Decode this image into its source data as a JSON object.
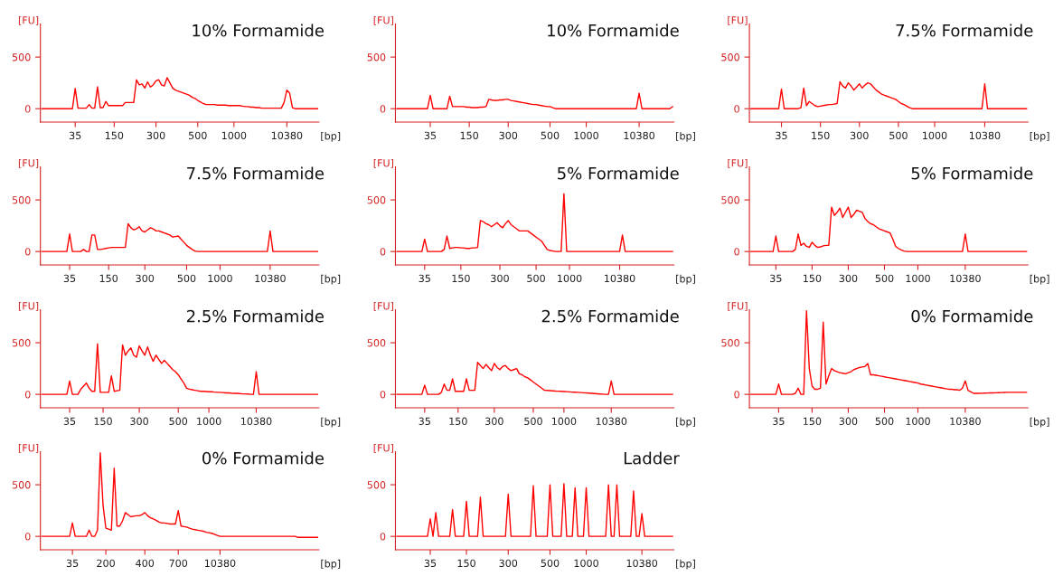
{
  "chart_data": [
    {
      "type": "line",
      "title": "10% Formamide",
      "xlabel": "[bp]",
      "ylabel": "[FU]",
      "ylim": [
        -130,
        820
      ],
      "yticks": [
        0,
        500
      ],
      "categories": [
        null,
        null,
        null,
        null,
        null,
        null,
        null,
        null,
        null,
        null,
        null,
        null,
        "35",
        null,
        null,
        null,
        null,
        null,
        null,
        null,
        null,
        null,
        null,
        null,
        null,
        null,
        "150",
        null,
        null,
        null,
        null,
        null,
        null,
        null,
        null,
        null,
        null,
        null,
        null,
        null,
        null,
        "300",
        null,
        null,
        null,
        null,
        null,
        null,
        null,
        null,
        null,
        null,
        null,
        null,
        null,
        null,
        "500",
        null,
        null,
        null,
        null,
        null,
        null,
        null,
        null,
        null,
        null,
        null,
        null,
        "1000",
        null,
        null,
        null,
        null,
        null,
        null,
        null,
        null,
        null,
        null,
        null,
        null,
        null,
        null,
        null,
        null,
        null,
        null,
        "10380",
        null,
        null,
        null,
        null,
        null,
        null,
        null,
        null,
        null,
        null,
        null
      ],
      "series": [
        {
          "color": "#ff0000",
          "values": [
            0,
            0,
            0,
            0,
            0,
            0,
            0,
            0,
            0,
            0,
            0,
            0,
            196,
            5,
            5,
            5,
            5,
            40,
            5,
            5,
            212,
            10,
            10,
            70,
            30,
            30,
            30,
            30,
            30,
            30,
            60,
            60,
            60,
            60,
            280,
            230,
            240,
            200,
            260,
            210,
            230,
            270,
            280,
            230,
            220,
            300,
            250,
            200,
            180,
            170,
            160,
            150,
            140,
            130,
            110,
            100,
            80,
            65,
            50,
            40,
            40,
            40,
            40,
            35,
            35,
            35,
            35,
            30,
            30,
            30,
            30,
            30,
            25,
            20,
            20,
            15,
            15,
            10,
            10,
            5,
            5,
            5,
            5,
            5,
            5,
            5,
            5,
            60,
            180,
            150,
            10,
            0,
            0,
            0,
            0,
            0,
            0,
            0,
            0,
            0
          ]
        }
      ]
    },
    {
      "type": "line",
      "title": "10% Formamide",
      "xlabel": "[bp]",
      "ylabel": "[FU]",
      "ylim": [
        -130,
        820
      ],
      "yticks": [
        0,
        500
      ],
      "categories": [
        null,
        null,
        null,
        null,
        null,
        null,
        null,
        null,
        null,
        null,
        null,
        null,
        "35",
        null,
        null,
        null,
        null,
        null,
        null,
        null,
        null,
        null,
        null,
        null,
        null,
        null,
        "150",
        null,
        null,
        null,
        null,
        null,
        null,
        null,
        null,
        null,
        null,
        null,
        null,
        null,
        "300",
        null,
        null,
        null,
        null,
        null,
        null,
        null,
        null,
        null,
        null,
        null,
        null,
        null,
        null,
        "500",
        null,
        null,
        null,
        null,
        null,
        null,
        null,
        null,
        null,
        null,
        null,
        null,
        "1000",
        null,
        null,
        null,
        null,
        null,
        null,
        null,
        null,
        null,
        null,
        null,
        null,
        null,
        null,
        null,
        null,
        null,
        null,
        "10380",
        null,
        null,
        null,
        null,
        null,
        null,
        null,
        null,
        null,
        null,
        null,
        null
      ],
      "series": [
        {
          "color": "#ff0000",
          "values": [
            0,
            0,
            0,
            0,
            0,
            0,
            0,
            0,
            0,
            0,
            0,
            0,
            130,
            0,
            0,
            0,
            0,
            0,
            0,
            120,
            20,
            20,
            20,
            20,
            20,
            15,
            15,
            10,
            10,
            10,
            15,
            15,
            20,
            90,
            85,
            80,
            80,
            85,
            85,
            90,
            90,
            80,
            75,
            70,
            65,
            60,
            55,
            50,
            45,
            40,
            40,
            35,
            30,
            25,
            20,
            20,
            10,
            0,
            0,
            0,
            0,
            0,
            0,
            0,
            0,
            0,
            0,
            0,
            0,
            0,
            0,
            0,
            0,
            0,
            0,
            0,
            0,
            0,
            0,
            0,
            0,
            0,
            0,
            0,
            0,
            0,
            0,
            150,
            0,
            0,
            0,
            0,
            0,
            0,
            0,
            0,
            0,
            0,
            0,
            20
          ]
        }
      ]
    },
    {
      "type": "line",
      "title": "7.5% Formamide",
      "xlabel": "[bp]",
      "ylabel": "[FU]",
      "ylim": [
        -130,
        820
      ],
      "yticks": [
        0,
        500
      ],
      "categories": [
        null,
        null,
        null,
        null,
        null,
        null,
        null,
        null,
        null,
        null,
        null,
        "35",
        null,
        null,
        null,
        null,
        null,
        null,
        null,
        null,
        null,
        null,
        null,
        null,
        null,
        "150",
        null,
        null,
        null,
        null,
        null,
        null,
        null,
        null,
        null,
        null,
        null,
        null,
        null,
        "300",
        null,
        null,
        null,
        null,
        null,
        null,
        null,
        null,
        null,
        null,
        null,
        null,
        null,
        "500",
        null,
        null,
        null,
        null,
        null,
        null,
        null,
        null,
        null,
        null,
        null,
        null,
        "1000",
        null,
        null,
        null,
        null,
        null,
        null,
        null,
        null,
        null,
        null,
        null,
        null,
        null,
        null,
        null,
        null,
        null,
        "10380",
        null,
        null,
        null,
        null,
        null,
        null,
        null,
        null,
        null,
        null,
        null,
        null,
        null,
        null,
        null
      ],
      "series": [
        {
          "color": "#ff0000",
          "values": [
            0,
            0,
            0,
            0,
            0,
            0,
            0,
            0,
            0,
            0,
            0,
            190,
            0,
            0,
            0,
            0,
            0,
            0,
            10,
            200,
            30,
            70,
            50,
            30,
            20,
            25,
            30,
            35,
            40,
            40,
            45,
            50,
            260,
            220,
            200,
            250,
            220,
            180,
            210,
            240,
            200,
            230,
            250,
            240,
            210,
            180,
            160,
            140,
            130,
            120,
            110,
            100,
            90,
            70,
            50,
            40,
            25,
            10,
            0,
            0,
            0,
            0,
            0,
            0,
            0,
            0,
            0,
            0,
            0,
            0,
            0,
            0,
            0,
            0,
            0,
            0,
            0,
            0,
            0,
            0,
            0,
            0,
            0,
            0,
            240,
            0,
            0,
            0,
            0,
            0,
            0,
            0,
            0,
            0,
            0,
            0,
            0,
            0,
            0,
            0
          ]
        }
      ]
    },
    {
      "type": "line",
      "title": "7.5% Formamide",
      "xlabel": "[bp]",
      "ylabel": "[FU]",
      "ylim": [
        -130,
        820
      ],
      "yticks": [
        0,
        500
      ],
      "categories": [
        null,
        null,
        null,
        null,
        null,
        null,
        null,
        null,
        null,
        null,
        "35",
        null,
        null,
        null,
        null,
        null,
        null,
        null,
        null,
        null,
        null,
        null,
        null,
        null,
        "150",
        null,
        null,
        null,
        null,
        null,
        null,
        null,
        null,
        null,
        null,
        null,
        null,
        "300",
        null,
        null,
        null,
        null,
        null,
        null,
        null,
        null,
        null,
        null,
        null,
        null,
        null,
        null,
        "500",
        null,
        null,
        null,
        null,
        null,
        null,
        null,
        null,
        null,
        null,
        null,
        "1000",
        null,
        null,
        null,
        null,
        null,
        null,
        null,
        null,
        null,
        null,
        null,
        null,
        null,
        null,
        null,
        null,
        null,
        "10380",
        null,
        null,
        null,
        null,
        null,
        null,
        null,
        null,
        null,
        null,
        null,
        null,
        null,
        null,
        null,
        null,
        null
      ],
      "series": [
        {
          "color": "#ff0000",
          "values": [
            0,
            0,
            0,
            0,
            0,
            0,
            0,
            0,
            0,
            0,
            170,
            0,
            0,
            0,
            0,
            20,
            0,
            0,
            160,
            160,
            20,
            20,
            25,
            30,
            35,
            40,
            40,
            40,
            40,
            40,
            40,
            270,
            230,
            210,
            220,
            240,
            200,
            190,
            210,
            230,
            220,
            200,
            200,
            190,
            180,
            170,
            160,
            140,
            145,
            150,
            120,
            90,
            60,
            40,
            20,
            5,
            0,
            0,
            0,
            0,
            0,
            0,
            0,
            0,
            0,
            0,
            0,
            0,
            0,
            0,
            0,
            0,
            0,
            0,
            0,
            0,
            0,
            0,
            0,
            0,
            0,
            0,
            200,
            0,
            0,
            0,
            0,
            0,
            0,
            0,
            0,
            0,
            0,
            0,
            0,
            0,
            0,
            0,
            0,
            0
          ]
        }
      ]
    },
    {
      "type": "line",
      "title": "5% Formamide",
      "xlabel": "[bp]",
      "ylabel": "[FU]",
      "ylim": [
        -130,
        820
      ],
      "yticks": [
        0,
        500
      ],
      "categories": [
        null,
        null,
        null,
        null,
        null,
        null,
        null,
        null,
        null,
        null,
        "35",
        null,
        null,
        null,
        null,
        null,
        null,
        null,
        null,
        null,
        null,
        null,
        null,
        "150",
        null,
        null,
        null,
        null,
        null,
        null,
        null,
        null,
        null,
        null,
        null,
        null,
        null,
        "300",
        null,
        null,
        null,
        null,
        null,
        null,
        null,
        null,
        null,
        null,
        null,
        null,
        "500",
        null,
        null,
        null,
        null,
        null,
        null,
        null,
        null,
        null,
        null,
        null,
        "1000",
        null,
        null,
        null,
        null,
        null,
        null,
        null,
        null,
        null,
        null,
        null,
        null,
        null,
        null,
        null,
        null,
        null,
        "10380",
        null,
        null,
        null,
        null,
        null,
        null,
        null,
        null,
        null,
        null,
        null,
        null,
        null,
        null,
        null,
        null,
        null,
        null,
        null
      ],
      "series": [
        {
          "color": "#ff0000",
          "values": [
            0,
            0,
            0,
            0,
            0,
            0,
            0,
            0,
            0,
            0,
            120,
            0,
            0,
            0,
            0,
            0,
            0,
            20,
            150,
            30,
            35,
            40,
            40,
            35,
            35,
            30,
            30,
            35,
            35,
            40,
            300,
            290,
            270,
            260,
            240,
            260,
            280,
            250,
            230,
            270,
            300,
            260,
            240,
            220,
            200,
            200,
            200,
            200,
            180,
            160,
            140,
            120,
            100,
            60,
            20,
            10,
            5,
            0,
            0,
            0,
            560,
            0,
            0,
            0,
            0,
            0,
            0,
            0,
            0,
            0,
            0,
            0,
            0,
            0,
            0,
            0,
            0,
            0,
            0,
            0,
            0,
            160,
            0,
            0,
            0,
            0,
            0,
            0,
            0,
            0,
            0,
            0,
            0,
            0,
            0,
            0,
            0,
            0,
            0,
            0
          ]
        }
      ]
    },
    {
      "type": "line",
      "title": "5% Formamide",
      "xlabel": "[bp]",
      "ylabel": "[FU]",
      "ylim": [
        -130,
        820
      ],
      "yticks": [
        0,
        500
      ],
      "categories": [
        null,
        null,
        null,
        null,
        null,
        null,
        null,
        null,
        null,
        "35",
        null,
        null,
        null,
        null,
        null,
        null,
        null,
        null,
        null,
        null,
        null,
        null,
        "150",
        null,
        null,
        null,
        null,
        null,
        null,
        null,
        null,
        null,
        null,
        null,
        null,
        "300",
        null,
        null,
        null,
        null,
        null,
        null,
        null,
        null,
        null,
        null,
        null,
        null,
        "500",
        null,
        null,
        null,
        null,
        null,
        null,
        null,
        null,
        null,
        null,
        null,
        "1000",
        null,
        null,
        null,
        null,
        null,
        null,
        null,
        null,
        null,
        null,
        null,
        null,
        null,
        null,
        null,
        null,
        "10380",
        null,
        null,
        null,
        null,
        null,
        null,
        null,
        null,
        null,
        null,
        null,
        null,
        null,
        null,
        null,
        null,
        null,
        null,
        null,
        null,
        null,
        null
      ],
      "series": [
        {
          "color": "#ff0000",
          "values": [
            0,
            0,
            0,
            0,
            0,
            0,
            0,
            0,
            0,
            150,
            0,
            0,
            0,
            0,
            0,
            0,
            20,
            170,
            60,
            80,
            50,
            40,
            90,
            60,
            40,
            45,
            55,
            60,
            60,
            430,
            350,
            380,
            420,
            330,
            380,
            430,
            330,
            360,
            400,
            390,
            380,
            320,
            290,
            270,
            260,
            240,
            220,
            210,
            200,
            190,
            180,
            120,
            50,
            30,
            15,
            5,
            0,
            0,
            0,
            0,
            0,
            0,
            0,
            0,
            0,
            0,
            0,
            0,
            0,
            0,
            0,
            0,
            0,
            0,
            0,
            0,
            0,
            170,
            0,
            0,
            0,
            0,
            0,
            0,
            0,
            0,
            0,
            0,
            0,
            0,
            0,
            0,
            0,
            0,
            0,
            0,
            0,
            0,
            0,
            0
          ]
        }
      ]
    },
    {
      "type": "line",
      "title": "2.5% Formamide",
      "xlabel": "[bp]",
      "ylabel": "[FU]",
      "ylim": [
        -130,
        820
      ],
      "yticks": [
        0,
        500
      ],
      "categories": [
        null,
        null,
        null,
        null,
        null,
        null,
        null,
        null,
        null,
        null,
        "35",
        null,
        null,
        null,
        null,
        null,
        null,
        null,
        null,
        null,
        null,
        null,
        "150",
        null,
        null,
        null,
        null,
        null,
        null,
        null,
        null,
        null,
        null,
        null,
        null,
        "300",
        null,
        null,
        null,
        null,
        null,
        null,
        null,
        null,
        null,
        null,
        null,
        null,
        null,
        "500",
        null,
        null,
        null,
        null,
        null,
        null,
        null,
        null,
        null,
        null,
        "1000",
        null,
        null,
        null,
        null,
        null,
        null,
        null,
        null,
        null,
        null,
        null,
        null,
        null,
        null,
        null,
        null,
        "10380",
        null,
        null,
        null,
        null,
        null,
        null,
        null,
        null,
        null,
        null,
        null,
        null,
        null,
        null,
        null,
        null,
        null,
        null,
        null,
        null,
        null,
        null
      ],
      "series": [
        {
          "color": "#ff0000",
          "values": [
            0,
            0,
            0,
            0,
            0,
            0,
            0,
            0,
            0,
            0,
            130,
            0,
            0,
            0,
            50,
            80,
            110,
            60,
            30,
            30,
            490,
            20,
            20,
            20,
            20,
            180,
            30,
            35,
            40,
            480,
            380,
            420,
            450,
            380,
            360,
            470,
            420,
            380,
            460,
            380,
            320,
            380,
            340,
            300,
            330,
            300,
            270,
            240,
            220,
            190,
            150,
            110,
            60,
            50,
            45,
            40,
            35,
            30,
            30,
            28,
            25,
            25,
            22,
            20,
            20,
            18,
            15,
            15,
            12,
            10,
            10,
            8,
            5,
            5,
            3,
            0,
            0,
            220,
            0,
            0,
            0,
            0,
            0,
            0,
            0,
            0,
            0,
            0,
            0,
            0,
            0,
            0,
            0,
            0,
            0,
            0,
            0,
            0,
            0,
            0
          ]
        }
      ]
    },
    {
      "type": "line",
      "title": "2.5% Formamide",
      "xlabel": "[bp]",
      "ylabel": "[FU]",
      "ylim": [
        -130,
        820
      ],
      "yticks": [
        0,
        500
      ],
      "categories": [
        null,
        null,
        null,
        null,
        null,
        null,
        null,
        null,
        null,
        null,
        "35",
        null,
        null,
        null,
        null,
        null,
        null,
        null,
        null,
        null,
        null,
        null,
        "150",
        null,
        null,
        null,
        null,
        null,
        null,
        null,
        null,
        null,
        null,
        null,
        null,
        "300",
        null,
        null,
        null,
        null,
        null,
        null,
        null,
        null,
        null,
        null,
        null,
        null,
        null,
        "500",
        null,
        null,
        null,
        null,
        null,
        null,
        null,
        null,
        null,
        null,
        "1000",
        null,
        null,
        null,
        null,
        null,
        null,
        null,
        null,
        null,
        null,
        null,
        null,
        null,
        null,
        null,
        null,
        "10380",
        null,
        null,
        null,
        null,
        null,
        null,
        null,
        null,
        null,
        null,
        null,
        null,
        null,
        null,
        null,
        null,
        null,
        null,
        null,
        null,
        null,
        null
      ],
      "series": [
        {
          "color": "#ff0000",
          "values": [
            0,
            0,
            0,
            0,
            0,
            0,
            0,
            0,
            0,
            0,
            90,
            0,
            0,
            0,
            0,
            0,
            20,
            100,
            40,
            40,
            150,
            30,
            30,
            30,
            30,
            150,
            40,
            40,
            40,
            310,
            280,
            250,
            290,
            260,
            230,
            300,
            260,
            240,
            270,
            280,
            250,
            230,
            240,
            250,
            200,
            190,
            170,
            160,
            140,
            120,
            100,
            80,
            60,
            40,
            38,
            36,
            34,
            32,
            31,
            30,
            28,
            26,
            24,
            22,
            21,
            20,
            18,
            16,
            14,
            12,
            10,
            8,
            6,
            4,
            2,
            0,
            0,
            130,
            0,
            0,
            0,
            0,
            0,
            0,
            0,
            0,
            0,
            0,
            0,
            0,
            0,
            0,
            0,
            0,
            0,
            0,
            0,
            0,
            0,
            0
          ]
        }
      ]
    },
    {
      "type": "line",
      "title": "0% Formamide",
      "xlabel": "[bp]",
      "ylabel": "[FU]",
      "ylim": [
        -130,
        820
      ],
      "yticks": [
        0,
        500
      ],
      "categories": [
        null,
        null,
        null,
        null,
        null,
        null,
        null,
        null,
        null,
        null,
        "35",
        null,
        null,
        null,
        null,
        null,
        null,
        null,
        null,
        null,
        null,
        null,
        "150",
        null,
        null,
        null,
        null,
        null,
        null,
        null,
        null,
        null,
        null,
        null,
        null,
        "300",
        null,
        null,
        null,
        null,
        null,
        null,
        null,
        null,
        null,
        null,
        null,
        null,
        "500",
        null,
        null,
        null,
        null,
        null,
        null,
        null,
        null,
        null,
        null,
        null,
        "1000",
        null,
        null,
        null,
        null,
        null,
        null,
        null,
        null,
        null,
        null,
        null,
        null,
        null,
        null,
        null,
        null,
        "10380",
        null,
        null,
        null,
        null,
        null,
        null,
        null,
        null,
        null,
        null,
        null,
        null,
        null,
        null,
        null,
        null,
        null,
        null,
        null,
        null,
        null,
        null
      ],
      "series": [
        {
          "color": "#ff0000",
          "values": [
            0,
            0,
            0,
            0,
            0,
            0,
            0,
            0,
            0,
            0,
            100,
            0,
            0,
            0,
            0,
            0,
            10,
            60,
            0,
            0,
            810,
            250,
            80,
            50,
            50,
            60,
            700,
            100,
            180,
            250,
            230,
            220,
            210,
            205,
            200,
            210,
            220,
            240,
            250,
            260,
            265,
            270,
            300,
            190,
            190,
            185,
            180,
            175,
            170,
            165,
            160,
            155,
            150,
            145,
            140,
            135,
            130,
            125,
            120,
            115,
            110,
            100,
            95,
            90,
            85,
            80,
            75,
            70,
            65,
            60,
            55,
            50,
            50,
            45,
            45,
            40,
            60,
            130,
            40,
            25,
            10,
            10,
            10,
            11,
            12,
            13,
            14,
            15,
            16,
            17,
            18,
            19,
            20,
            20,
            20,
            20,
            20,
            20,
            20,
            20
          ]
        }
      ]
    },
    {
      "type": "line",
      "title": "0% Formamide",
      "xlabel": "[bp]",
      "ylabel": "[FU]",
      "ylim": [
        -130,
        820
      ],
      "yticks": [
        0,
        500
      ],
      "categories": [
        null,
        null,
        null,
        null,
        null,
        null,
        null,
        null,
        null,
        null,
        null,
        "35",
        null,
        null,
        null,
        null,
        null,
        null,
        null,
        null,
        null,
        null,
        null,
        "200",
        null,
        null,
        null,
        null,
        null,
        null,
        null,
        null,
        null,
        null,
        null,
        null,
        null,
        "400",
        null,
        null,
        null,
        null,
        null,
        null,
        null,
        null,
        null,
        null,
        null,
        "700",
        null,
        null,
        null,
        null,
        null,
        null,
        null,
        null,
        null,
        null,
        null,
        null,
        null,
        null,
        "10380",
        null,
        null,
        null,
        null,
        null,
        null,
        null,
        null,
        null,
        null,
        null,
        null,
        null,
        null,
        null,
        null,
        null,
        null,
        null,
        null,
        null,
        null,
        null,
        null,
        null,
        null,
        null,
        null,
        null,
        null,
        null,
        null,
        null,
        null,
        null
      ],
      "series": [
        {
          "color": "#ff0000",
          "values": [
            0,
            0,
            0,
            0,
            0,
            0,
            0,
            0,
            0,
            0,
            0,
            130,
            0,
            0,
            0,
            0,
            0,
            60,
            0,
            0,
            60,
            810,
            300,
            80,
            70,
            60,
            660,
            100,
            100,
            150,
            230,
            210,
            190,
            195,
            200,
            200,
            210,
            230,
            200,
            180,
            170,
            155,
            140,
            130,
            130,
            125,
            120,
            120,
            120,
            250,
            100,
            95,
            90,
            80,
            70,
            65,
            60,
            55,
            50,
            40,
            35,
            30,
            20,
            10,
            0,
            0,
            0,
            0,
            0,
            0,
            0,
            0,
            0,
            0,
            0,
            0,
            0,
            0,
            0,
            0,
            0,
            0,
            0,
            0,
            0,
            0,
            0,
            0,
            0,
            0,
            0,
            0,
            -10,
            -10,
            -10,
            -10,
            -10,
            -10,
            -10,
            -10
          ]
        }
      ]
    },
    {
      "type": "line",
      "title": "Ladder",
      "xlabel": "[bp]",
      "ylabel": "[FU]",
      "ylim": [
        -130,
        820
      ],
      "yticks": [
        0,
        500
      ],
      "categories": [
        null,
        null,
        null,
        null,
        null,
        null,
        null,
        null,
        null,
        null,
        null,
        null,
        "35",
        null,
        null,
        null,
        null,
        null,
        null,
        null,
        null,
        null,
        null,
        null,
        null,
        "150",
        null,
        null,
        null,
        null,
        null,
        null,
        null,
        null,
        null,
        null,
        null,
        null,
        null,
        null,
        "300",
        null,
        null,
        null,
        null,
        null,
        null,
        null,
        null,
        null,
        null,
        null,
        null,
        null,
        null,
        "500",
        null,
        null,
        null,
        null,
        null,
        null,
        null,
        null,
        null,
        null,
        null,
        null,
        "1000",
        null,
        null,
        null,
        null,
        null,
        null,
        null,
        null,
        null,
        null,
        null,
        null,
        null,
        null,
        null,
        null,
        null,
        null,
        null,
        "10380",
        null,
        null,
        null,
        null,
        null,
        null,
        null,
        null,
        null,
        null,
        null
      ],
      "series": [
        {
          "color": "#ff0000",
          "values": [
            0,
            0,
            0,
            0,
            0,
            0,
            0,
            0,
            0,
            0,
            0,
            0,
            170,
            0,
            230,
            0,
            0,
            0,
            0,
            0,
            260,
            0,
            0,
            0,
            0,
            340,
            0,
            0,
            0,
            0,
            380,
            0,
            0,
            0,
            0,
            0,
            0,
            0,
            0,
            0,
            410,
            0,
            0,
            0,
            0,
            0,
            0,
            0,
            0,
            490,
            0,
            0,
            0,
            0,
            0,
            500,
            0,
            0,
            0,
            0,
            510,
            0,
            0,
            0,
            470,
            0,
            0,
            0,
            470,
            0,
            0,
            0,
            0,
            0,
            0,
            0,
            500,
            0,
            0,
            500,
            0,
            0,
            0,
            0,
            0,
            440,
            0,
            0,
            220,
            0,
            0,
            0,
            0,
            0,
            0,
            0,
            0,
            0,
            0,
            0
          ]
        }
      ]
    }
  ]
}
